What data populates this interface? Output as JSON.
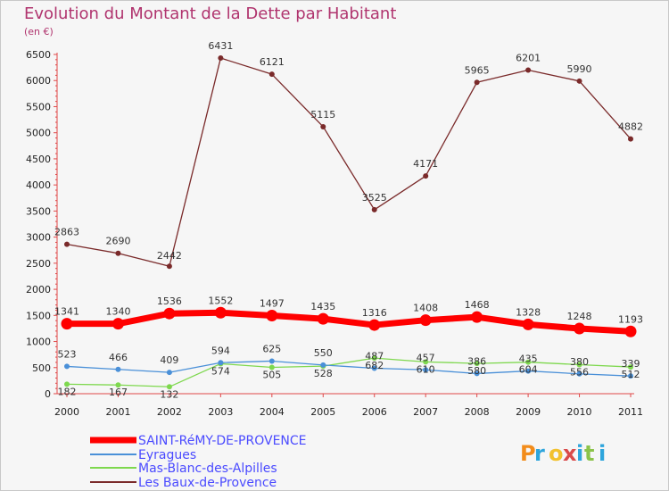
{
  "title": "Evolution du Montant de la Dette par Habitant",
  "subtitle": "(en €)",
  "logo_text": "Proxiti",
  "chart_data": {
    "type": "line",
    "title": "Evolution du Montant de la Dette par Habitant",
    "subtitle": "(en €)",
    "x": [
      "2000",
      "2001",
      "2002",
      "2003",
      "2004",
      "2005",
      "2006",
      "2007",
      "2008",
      "2009",
      "2010",
      "2011"
    ],
    "ylim": [
      0,
      6500
    ],
    "yticks": [
      0,
      500,
      1000,
      1500,
      2000,
      2500,
      3000,
      3500,
      4000,
      4500,
      5000,
      5500,
      6000,
      6500
    ],
    "grid": false,
    "legend_position": "bottom-left",
    "series": [
      {
        "name": "SAINT-RéMY-DE-PROVENCE",
        "color": "#ff0000",
        "label_color": "#4a4aff",
        "values": [
          1341,
          1340,
          1536,
          1552,
          1497,
          1435,
          1316,
          1408,
          1468,
          1328,
          1248,
          1193
        ]
      },
      {
        "name": "Eyragues",
        "color": "#4a90d8",
        "label_color": "#4a4aff",
        "values": [
          523,
          466,
          409,
          594,
          625,
          550,
          487,
          457,
          386,
          435,
          380,
          339
        ]
      },
      {
        "name": "Mas-Blanc-des-Alpilles",
        "color": "#7ed84e",
        "label_color": "#4a4aff",
        "values": [
          182,
          167,
          132,
          574,
          505,
          528,
          682,
          610,
          580,
          604,
          556,
          512
        ]
      },
      {
        "name": "Les Baux-de-Provence",
        "color": "#7a2a2a",
        "label_color": "#4a4aff",
        "values": [
          2863,
          2690,
          2442,
          6431,
          6121,
          5115,
          3525,
          4171,
          5965,
          6201,
          5990,
          4882
        ]
      }
    ]
  }
}
